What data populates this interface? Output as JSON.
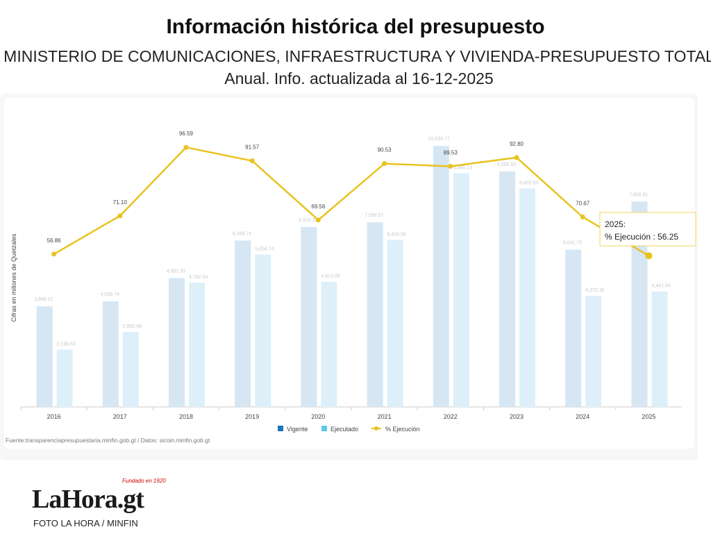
{
  "header": {
    "title": "Información histórica del presupuesto",
    "subtitle": "MINISTERIO DE COMUNICACIONES, INFRAESTRUCTURA Y VIVIENDA-PRESUPUESTO TOTAL",
    "subtitle2": "Anual. Info. actualizada al 16-12-2025"
  },
  "chart_data": {
    "type": "bar",
    "ylabel": "Cifras en millones de Quetzales",
    "categories": [
      "2016",
      "2017",
      "2018",
      "2019",
      "2020",
      "2021",
      "2022",
      "2023",
      "2024",
      "2025"
    ],
    "series": [
      {
        "name": "Vigente",
        "type": "bar",
        "color": "#d6e6f3",
        "values": [
          3868.52,
          4058.74,
          4951.35,
          6398.74,
          6919.33,
          7096.57,
          10035.77,
          9055.5,
          6042.73,
          7895.81
        ]
      },
      {
        "name": "Ejecutado",
        "type": "bar",
        "color": "#ddf0f9",
        "values": [
          2199.53,
          2885.49,
          4782.54,
          5858.74,
          4813.09,
          6424.58,
          8985.13,
          8403.5,
          4270.36,
          4441.04
        ]
      },
      {
        "name": "% Ejecución",
        "type": "line",
        "color": "#e8c21e",
        "values": [
          56.86,
          71.1,
          96.59,
          91.57,
          69.56,
          90.53,
          89.53,
          92.8,
          70.67,
          56.25
        ]
      }
    ],
    "legend_colors": [
      "#1a75b8",
      "#5cc8e8",
      "#e8c21e"
    ],
    "legend": "bottom",
    "grid": false,
    "source": "Fuente:transparenciapresupuestaria.minfin.gob.gt / Datos: sicoin.minfin.gob.gt",
    "tooltip": {
      "title": "2025:",
      "text": "% Ejecución : 56.25"
    }
  },
  "footer": {
    "logo": "LaHora.gt",
    "logo_tag": "Fundado en 1920",
    "credit": "FOTO LA HORA / MINFIN"
  }
}
